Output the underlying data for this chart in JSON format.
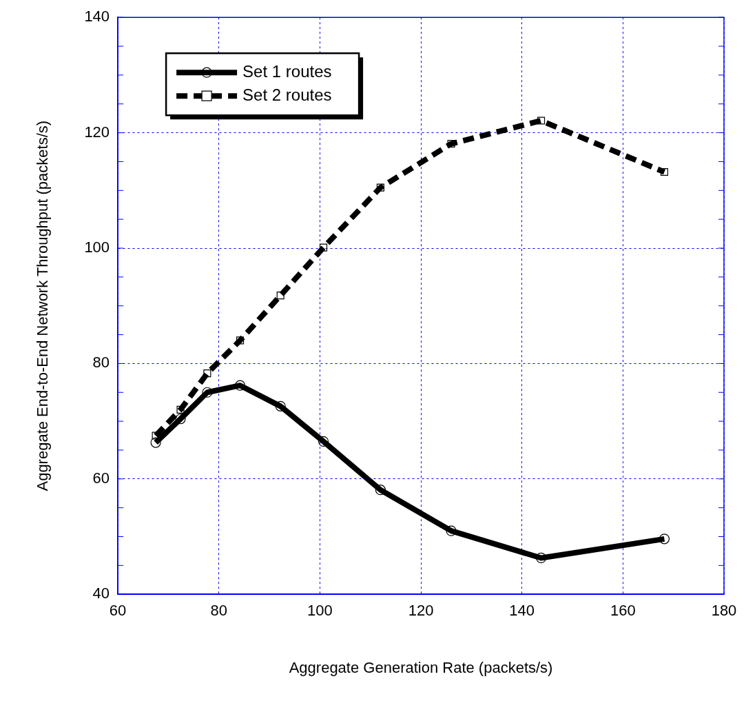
{
  "chart_data": {
    "type": "line",
    "xlabel": "Aggregate Generation Rate (packets/s)",
    "ylabel": "Aggregate End-to-End Network Throughput (packets/s)",
    "x": [
      67.5,
      72.4,
      77.7,
      84.2,
      92.2,
      100.7,
      112.0,
      126.0,
      143.8,
      168.2
    ],
    "series": [
      {
        "name": "Set 1 routes",
        "color": "#000000",
        "line_style": "solid",
        "marker": "circle",
        "values": [
          66.3,
          70.4,
          75.0,
          76.2,
          72.6,
          66.5,
          58.1,
          51.0,
          46.3,
          49.6
        ]
      },
      {
        "name": "Set 2 routes",
        "color": "#000000",
        "line_style": "dashed",
        "marker": "square",
        "values": [
          67.5,
          72.0,
          78.3,
          84.0,
          91.8,
          100.1,
          110.5,
          118.1,
          122.1,
          113.2
        ]
      }
    ],
    "xlim": [
      60,
      180
    ],
    "xticks": [
      60,
      80,
      100,
      120,
      140,
      160,
      180
    ],
    "ylim": [
      40,
      140
    ],
    "yticks": [
      40,
      {
        "value": 45,
        "label": null
      },
      {
        "value": 50,
        "label": null
      },
      {
        "value": 55,
        "label": null
      },
      60,
      {
        "value": 65,
        "label": null
      },
      {
        "value": 70,
        "label": null
      },
      {
        "value": 75,
        "label": null
      },
      80,
      {
        "value": 85,
        "label": null
      },
      {
        "value": 90,
        "label": null
      },
      {
        "value": 95,
        "label": null
      },
      100,
      {
        "value": 105,
        "label": null
      },
      {
        "value": 110,
        "label": null
      },
      {
        "value": 115,
        "label": null
      },
      120,
      {
        "value": 125,
        "label": null
      },
      {
        "value": 130,
        "label": null
      },
      {
        "value": 135,
        "label": null
      },
      140
    ],
    "grid": true,
    "legend": "top left"
  }
}
